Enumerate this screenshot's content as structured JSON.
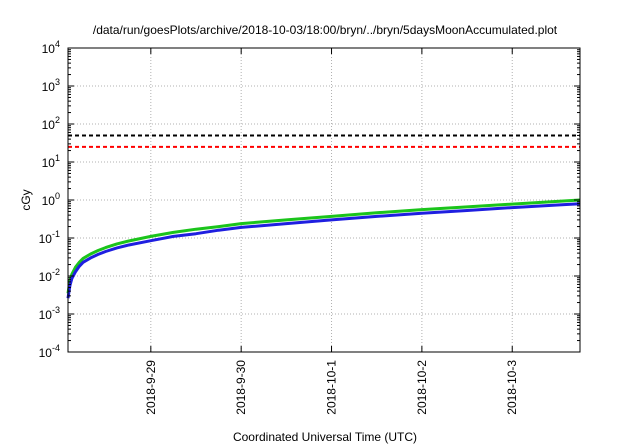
{
  "chart_data": {
    "type": "line",
    "title": "/data/run/goesPlots/archive/2018-10-03/18:00/bryn/../bryn/5daysMoonAccumulated.plot",
    "xlabel": "Coordinated Universal Time (UTC)",
    "ylabel": "cGy",
    "x_scale": "time",
    "y_scale": "log",
    "xlim": [
      "2018-09-28 02:00",
      "2018-10-03 18:00"
    ],
    "ylim": [
      0.0001,
      10000
    ],
    "x_ticks": [
      "2018-9-29",
      "2018-9-30",
      "2018-10-1",
      "2018-10-2",
      "2018-10-3"
    ],
    "x_tick_values": [
      "2018-09-29",
      "2018-09-30",
      "2018-10-01",
      "2018-10-02",
      "2018-10-03"
    ],
    "y_ticks": [
      {
        "base": "10",
        "exp": "-4",
        "value": 0.0001
      },
      {
        "base": "10",
        "exp": "-3",
        "value": 0.001
      },
      {
        "base": "10",
        "exp": "-2",
        "value": 0.01
      },
      {
        "base": "10",
        "exp": "-1",
        "value": 0.1
      },
      {
        "base": "10",
        "exp": "0",
        "value": 1
      },
      {
        "base": "10",
        "exp": "1",
        "value": 10
      },
      {
        "base": "10",
        "exp": "2",
        "value": 100
      },
      {
        "base": "10",
        "exp": "3",
        "value": 1000
      },
      {
        "base": "10",
        "exp": "4",
        "value": 10000
      }
    ],
    "grid": true,
    "legend": "none",
    "reference_lines": [
      {
        "value": 50,
        "color": "#000000",
        "style": "dashed"
      },
      {
        "value": 25,
        "color": "#ff0000",
        "style": "dashed"
      }
    ],
    "series": [
      {
        "color": "#1bc41b",
        "x": [
          "2018-09-28 02:00",
          "2018-09-28 02:30",
          "2018-09-28 03:00",
          "2018-09-28 04:00",
          "2018-09-28 05:00",
          "2018-09-28 06:00",
          "2018-09-28 08:00",
          "2018-09-28 10:00",
          "2018-09-28 12:00",
          "2018-09-28 15:00",
          "2018-09-28 18:00",
          "2018-09-29 00:00",
          "2018-09-29 06:00",
          "2018-09-29 12:00",
          "2018-09-29 18:00",
          "2018-09-30 00:00",
          "2018-09-30 12:00",
          "2018-10-01 00:00",
          "2018-10-01 12:00",
          "2018-10-02 00:00",
          "2018-10-02 12:00",
          "2018-10-03 00:00",
          "2018-10-03 12:00",
          "2018-10-03 18:00"
        ],
        "y": [
          0.0035,
          0.0075,
          0.011,
          0.017,
          0.023,
          0.029,
          0.038,
          0.047,
          0.056,
          0.07,
          0.083,
          0.11,
          0.14,
          0.17,
          0.2,
          0.24,
          0.3,
          0.37,
          0.46,
          0.56,
          0.66,
          0.78,
          0.92,
          1.0
        ]
      },
      {
        "color": "#1f1fe0",
        "x": [
          "2018-09-28 02:00",
          "2018-09-28 02:30",
          "2018-09-28 03:00",
          "2018-09-28 04:00",
          "2018-09-28 05:00",
          "2018-09-28 06:00",
          "2018-09-28 08:00",
          "2018-09-28 10:00",
          "2018-09-28 12:00",
          "2018-09-28 15:00",
          "2018-09-28 18:00",
          "2018-09-29 00:00",
          "2018-09-29 06:00",
          "2018-09-29 12:00",
          "2018-09-29 18:00",
          "2018-09-30 00:00",
          "2018-09-30 12:00",
          "2018-10-01 00:00",
          "2018-10-01 12:00",
          "2018-10-02 00:00",
          "2018-10-02 12:00",
          "2018-10-03 00:00",
          "2018-10-03 12:00",
          "2018-10-03 18:00"
        ],
        "y": [
          0.0026,
          0.0056,
          0.0085,
          0.013,
          0.018,
          0.023,
          0.03,
          0.037,
          0.044,
          0.055,
          0.065,
          0.085,
          0.11,
          0.13,
          0.16,
          0.19,
          0.24,
          0.3,
          0.37,
          0.45,
          0.53,
          0.63,
          0.74,
          0.8
        ]
      }
    ]
  }
}
